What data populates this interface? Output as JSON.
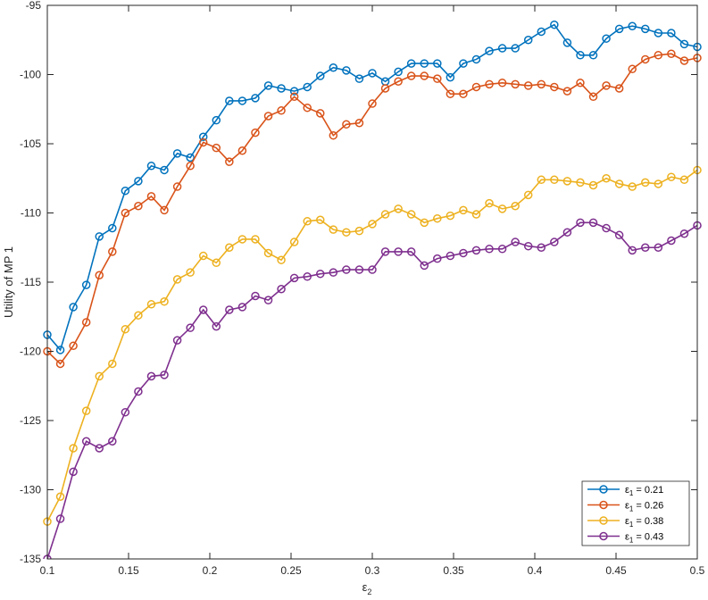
{
  "chart_data": {
    "type": "line",
    "title": "",
    "xlabel": "ε",
    "xlabel_sub": "2",
    "ylabel": "Utility of MP 1",
    "xlim": [
      0.1,
      0.5
    ],
    "ylim": [
      -135,
      -95
    ],
    "xticks": [
      0.1,
      0.15,
      0.2,
      0.25,
      0.3,
      0.35,
      0.4,
      0.45,
      0.5
    ],
    "yticks": [
      -135,
      -130,
      -125,
      -120,
      -115,
      -110,
      -105,
      -100,
      -95
    ],
    "xtick_labels": [
      "0.1",
      "0.15",
      "0.2",
      "0.25",
      "0.3",
      "0.35",
      "0.4",
      "0.45",
      "0.5"
    ],
    "ytick_labels": [
      "-135",
      "-130",
      "-125",
      "-120",
      "-115",
      "-110",
      "-105",
      "-100",
      "-95"
    ],
    "grid": false,
    "legend_position": "bottom-right",
    "x": [
      0.1,
      0.108,
      0.116,
      0.124,
      0.132,
      0.14,
      0.148,
      0.156,
      0.164,
      0.172,
      0.18,
      0.188,
      0.196,
      0.204,
      0.212,
      0.22,
      0.228,
      0.236,
      0.244,
      0.252,
      0.26,
      0.268,
      0.276,
      0.284,
      0.292,
      0.3,
      0.308,
      0.316,
      0.324,
      0.332,
      0.34,
      0.348,
      0.356,
      0.364,
      0.372,
      0.38,
      0.388,
      0.396,
      0.404,
      0.412,
      0.42,
      0.428,
      0.436,
      0.444,
      0.452,
      0.46,
      0.468,
      0.476,
      0.484,
      0.492,
      0.5
    ],
    "series": [
      {
        "name": "= 0.21",
        "eps_sub": "1",
        "color": "#0072BD",
        "values": [
          -118.8,
          -119.9,
          -116.8,
          -115.2,
          -111.7,
          -111.1,
          -108.4,
          -107.7,
          -106.6,
          -106.9,
          -105.7,
          -106.0,
          -104.5,
          -103.3,
          -101.9,
          -101.9,
          -101.7,
          -100.8,
          -101.0,
          -101.2,
          -100.9,
          -100.1,
          -99.5,
          -99.7,
          -100.3,
          -99.9,
          -100.5,
          -99.8,
          -99.2,
          -99.2,
          -99.2,
          -100.2,
          -99.2,
          -98.9,
          -98.3,
          -98.1,
          -98.1,
          -97.5,
          -96.9,
          -96.4,
          -97.7,
          -98.6,
          -98.6,
          -97.4,
          -96.7,
          -96.5,
          -96.7,
          -97.0,
          -97.0,
          -97.8,
          -98.0
        ]
      },
      {
        "name": "= 0.26",
        "eps_sub": "1",
        "color": "#D95319",
        "values": [
          -120.0,
          -120.9,
          -119.6,
          -117.9,
          -114.5,
          -112.8,
          -110.0,
          -109.5,
          -108.8,
          -109.8,
          -108.1,
          -106.6,
          -104.9,
          -105.3,
          -106.3,
          -105.5,
          -104.2,
          -103.0,
          -102.6,
          -101.6,
          -102.4,
          -102.8,
          -104.4,
          -103.6,
          -103.5,
          -102.1,
          -101.0,
          -100.5,
          -100.1,
          -100.1,
          -100.3,
          -101.4,
          -101.4,
          -100.9,
          -100.7,
          -100.6,
          -100.7,
          -100.8,
          -100.7,
          -100.9,
          -101.2,
          -100.6,
          -101.6,
          -100.8,
          -101.0,
          -99.6,
          -98.9,
          -98.6,
          -98.5,
          -99.0,
          -98.8
        ]
      },
      {
        "name": "= 0.38",
        "eps_sub": "1",
        "color": "#EDB120",
        "values": [
          -132.3,
          -130.5,
          -127.0,
          -124.3,
          -121.8,
          -120.9,
          -118.4,
          -117.4,
          -116.6,
          -116.4,
          -114.8,
          -114.3,
          -113.1,
          -113.6,
          -112.5,
          -111.9,
          -111.9,
          -112.9,
          -113.4,
          -112.1,
          -110.6,
          -110.5,
          -111.2,
          -111.4,
          -111.3,
          -110.8,
          -110.1,
          -109.7,
          -110.1,
          -110.7,
          -110.4,
          -110.2,
          -109.8,
          -110.1,
          -109.3,
          -109.7,
          -109.5,
          -108.7,
          -107.6,
          -107.6,
          -107.7,
          -107.8,
          -108.0,
          -107.5,
          -107.9,
          -108.1,
          -107.8,
          -107.9,
          -107.4,
          -107.6,
          -106.9
        ]
      },
      {
        "name": "= 0.43",
        "eps_sub": "1",
        "color": "#7E2F8E",
        "values": [
          -135.0,
          -132.1,
          -128.7,
          -126.5,
          -127.0,
          -126.5,
          -124.4,
          -122.9,
          -121.8,
          -121.7,
          -119.2,
          -118.3,
          -117.0,
          -118.2,
          -117.0,
          -116.8,
          -116.0,
          -116.3,
          -115.5,
          -114.7,
          -114.6,
          -114.4,
          -114.3,
          -114.1,
          -114.1,
          -114.1,
          -112.8,
          -112.8,
          -112.8,
          -113.8,
          -113.3,
          -113.1,
          -112.9,
          -112.7,
          -112.6,
          -112.6,
          -112.1,
          -112.4,
          -112.5,
          -112.1,
          -111.4,
          -110.7,
          -110.7,
          -111.1,
          -111.6,
          -112.7,
          -112.5,
          -112.5,
          -112.0,
          -111.5,
          -110.9
        ]
      }
    ]
  }
}
